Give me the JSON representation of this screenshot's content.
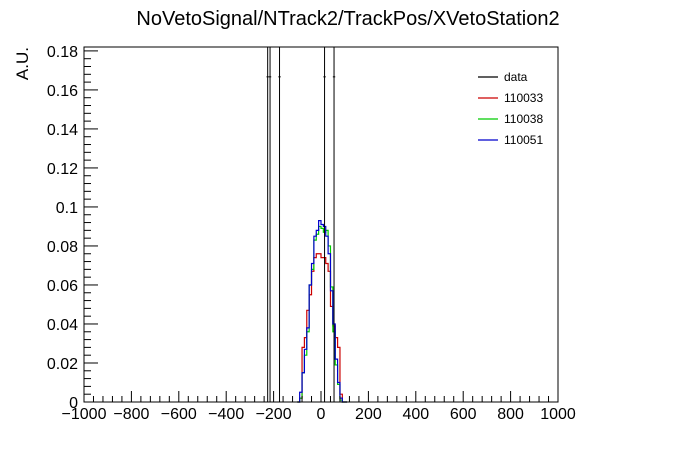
{
  "chart_data": {
    "type": "histogram",
    "title": "NoVetoSignal/NTrack2/TrackPos/XVetoStation2",
    "ylabel": "A.U.",
    "xlabel": "",
    "xlim": [
      -1000,
      1000
    ],
    "ylim": [
      0,
      0.182
    ],
    "x_ticks": [
      "−1000",
      "−800",
      "−600",
      "−400",
      "−200",
      "0",
      "200",
      "400",
      "600",
      "800",
      "1000"
    ],
    "x_tick_values": [
      -1000,
      -800,
      -600,
      -400,
      -200,
      0,
      200,
      400,
      600,
      800,
      1000
    ],
    "y_ticks": [
      "0",
      "0.02",
      "0.04",
      "0.06",
      "0.08",
      "0.1",
      "0.12",
      "0.14",
      "0.16",
      "0.18"
    ],
    "y_tick_values": [
      0,
      0.02,
      0.04,
      0.06,
      0.08,
      0.1,
      0.12,
      0.14,
      0.16,
      0.18
    ],
    "legend": {
      "position": "top-right"
    },
    "series": [
      {
        "name": "data",
        "color": "#000000",
        "style": "points-with-errors",
        "x": [
          -225,
          -215,
          -175,
          15,
          55
        ],
        "y": [
          0.1667,
          0.1667,
          0.1667,
          0.1667,
          0.1667
        ],
        "xerr": 5
      },
      {
        "name": "110033",
        "color": "#cc0000",
        "style": "step",
        "bin_edges": [
          -100,
          -90,
          -80,
          -70,
          -60,
          -50,
          -40,
          -30,
          -20,
          -10,
          0,
          10,
          20,
          30,
          40,
          50,
          60,
          70,
          80,
          90,
          100,
          110
        ],
        "values": [
          0.0,
          0.002,
          0.028,
          0.033,
          0.047,
          0.055,
          0.067,
          0.074,
          0.076,
          0.076,
          0.074,
          0.074,
          0.071,
          0.067,
          0.049,
          0.039,
          0.033,
          0.028,
          0.004,
          0.0,
          0.0
        ]
      },
      {
        "name": "110038",
        "color": "#00cc00",
        "style": "step",
        "bin_edges": [
          -100,
          -90,
          -80,
          -70,
          -60,
          -50,
          -40,
          -30,
          -20,
          -10,
          0,
          10,
          20,
          30,
          40,
          50,
          60,
          70,
          80,
          90,
          100,
          110
        ],
        "values": [
          0.0,
          0.002,
          0.015,
          0.024,
          0.036,
          0.06,
          0.068,
          0.083,
          0.086,
          0.09,
          0.089,
          0.087,
          0.088,
          0.08,
          0.059,
          0.036,
          0.019,
          0.009,
          0.001,
          0.0,
          0.0
        ]
      },
      {
        "name": "110051",
        "color": "#0000cc",
        "style": "step",
        "bin_edges": [
          -100,
          -90,
          -80,
          -70,
          -60,
          -50,
          -40,
          -30,
          -20,
          -10,
          0,
          10,
          20,
          30,
          40,
          50,
          60,
          70,
          80,
          90,
          100,
          110
        ],
        "values": [
          0.0,
          0.005,
          0.015,
          0.027,
          0.038,
          0.06,
          0.071,
          0.085,
          0.088,
          0.093,
          0.091,
          0.09,
          0.085,
          0.076,
          0.057,
          0.04,
          0.022,
          0.01,
          0.002,
          0.0,
          0.0
        ]
      }
    ]
  }
}
